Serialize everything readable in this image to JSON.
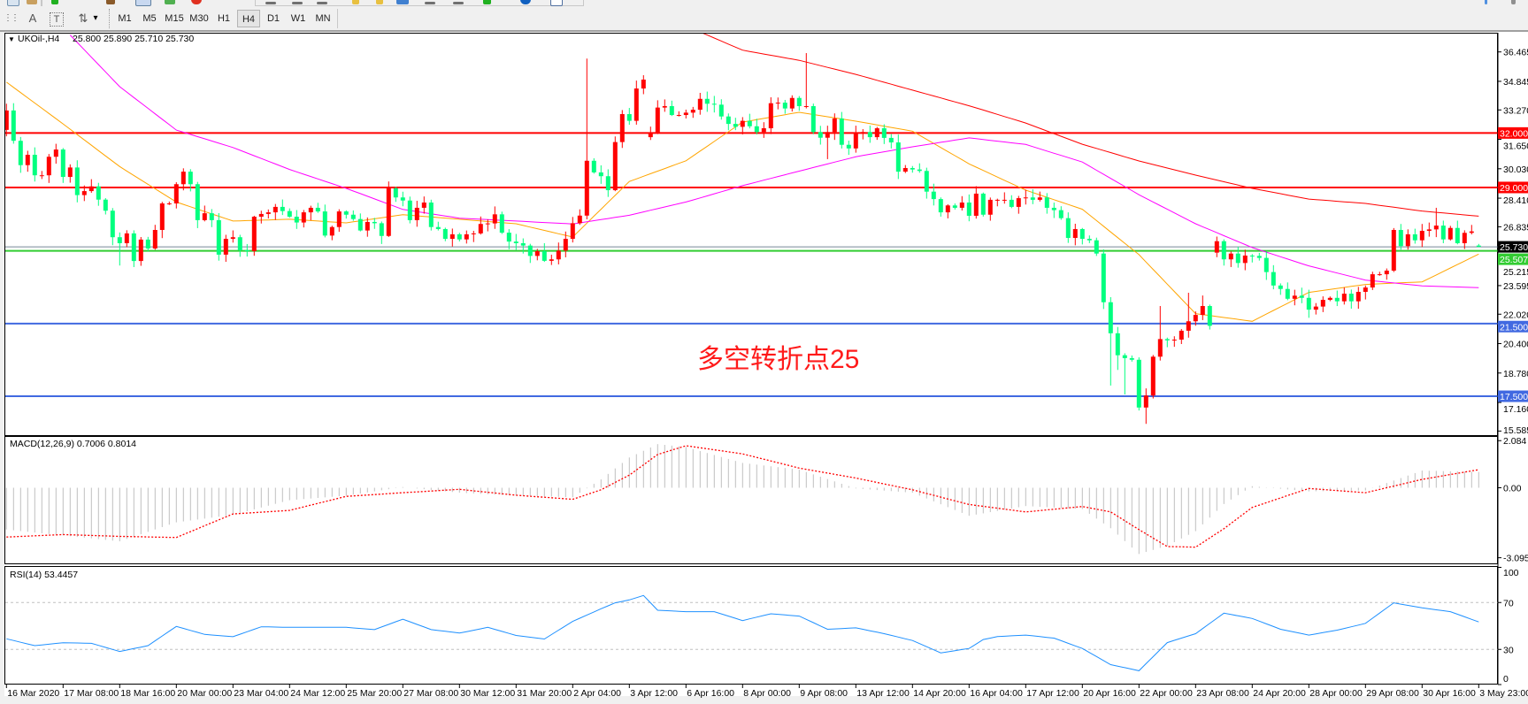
{
  "toolbar": {
    "timeframes": [
      "M1",
      "M5",
      "M15",
      "M30",
      "H1",
      "H4",
      "D1",
      "W1",
      "MN"
    ],
    "active_timeframe": "H4",
    "tools": [
      {
        "name": "grid-icon",
        "glyph": "⋮⋮"
      },
      {
        "name": "text-icon",
        "glyph": "A"
      },
      {
        "name": "text-label-icon",
        "glyph": "T"
      },
      {
        "name": "arrows-icon",
        "glyph": "⇅"
      }
    ],
    "dropdown_glyph": "▾"
  },
  "chart": {
    "symbol": "UKOil-,H4",
    "ohlc_text": "25.800 25.890 25.710 25.730",
    "legend_marker": "▼",
    "annotation": "多空转折点25",
    "colors": {
      "bull": "#ff0000",
      "bear": "#00ff7f",
      "ma_fast": "#ffa500",
      "ma_mid": "#ff00ff",
      "ma_slow": "#ff0000",
      "bid_line": "#778899",
      "annotation": "#ff1a1a"
    },
    "price_ticks": [
      "36.465",
      "34.845",
      "33.270",
      "31.650",
      "30.030",
      "28.410",
      "26.835",
      "25.215",
      "23.595",
      "22.020",
      "20.400",
      "18.780",
      "17.160",
      "15.585"
    ],
    "current_price": {
      "value": 25.73,
      "label": "25.730",
      "bg": "#000000"
    },
    "levels": [
      {
        "price": 32.0,
        "label": "32.000",
        "color": "#ff0000"
      },
      {
        "price": 29.0,
        "label": "29.000",
        "color": "#ff0000"
      },
      {
        "price": 25.507,
        "label": "25.507",
        "color": "#32cd32"
      },
      {
        "price": 21.5,
        "label": "21.500",
        "color": "#4169e1"
      },
      {
        "price": 17.5,
        "label": "17.500",
        "color": "#4169e1"
      }
    ],
    "dates": [
      "16 Mar 2020",
      "17 Mar 08:00",
      "18 Mar 16:00",
      "20 Mar 00:00",
      "23 Mar 04:00",
      "24 Mar 12:00",
      "25 Mar 20:00",
      "27 Mar 08:00",
      "30 Mar 12:00",
      "31 Mar 20:00",
      "2 Apr 04:00",
      "3 Apr 12:00",
      "6 Apr 16:00",
      "8 Apr 00:00",
      "9 Apr 08:00",
      "13 Apr 12:00",
      "14 Apr 20:00",
      "16 Apr 04:00",
      "17 Apr 12:00",
      "20 Apr 16:00",
      "22 Apr 00:00",
      "23 Apr 08:00",
      "24 Apr 20:00",
      "28 Apr 00:00",
      "29 Apr 08:00",
      "30 Apr 16:00",
      "3 May 23:00"
    ]
  },
  "chart_data": {
    "type": "candlestick",
    "timeframe": "H4",
    "close": [
      33.24,
      31.57,
      30.23,
      30.8,
      29.67,
      29.67,
      30.69,
      31.09,
      29.58,
      30.1,
      28.58,
      28.8,
      29.06,
      28.33,
      27.72,
      26.26,
      25.93,
      26.47,
      24.95,
      26.13,
      25.64,
      26.66,
      28.12,
      28.12,
      29.18,
      29.87,
      29.18,
      27.2,
      27.58,
      27.2,
      25.3,
      26.17,
      26.26,
      25.54,
      25.49,
      27.39,
      27.54,
      27.63,
      27.93,
      27.7,
      27.39,
      27.07,
      27.63,
      27.88,
      27.68,
      26.35,
      26.82,
      27.68,
      27.5,
      27.26,
      26.63,
      27.1,
      27.03,
      26.33,
      28.95,
      28.45,
      28.28,
      27.2,
      27.88,
      28.17,
      26.82,
      26.71,
      26.17,
      26.42,
      26.14,
      26.42,
      26.47,
      26.99,
      27.02,
      27.52,
      26.51,
      26.02,
      25.93,
      25.8,
      25.23,
      25.49,
      24.96,
      25.04,
      25.52,
      26.17,
      27.03,
      27.45,
      30.47,
      29.83,
      29.62,
      28.85,
      31.5,
      33.04,
      32.67,
      34.45,
      34.94,
      32.02,
      33.4,
      33.48,
      32.99,
      32.99,
      33.12,
      33.28,
      33.88,
      33.61,
      33.56,
      32.91,
      32.5,
      32.34,
      32.67,
      32.37,
      32.05,
      32.26,
      33.64,
      33.67,
      33.35,
      33.93,
      33.48,
      33.48,
      32.05,
      31.74,
      32.05,
      32.8,
      31.35,
      31.15,
      32.02,
      32.05,
      31.77,
      32.26,
      31.73,
      31.48,
      29.87,
      30.07,
      29.99,
      29.91,
      28.77,
      28.36,
      27.63,
      28.01,
      27.88,
      28.17,
      27.44,
      28.66,
      27.5,
      28.32,
      28.32,
      28.32,
      27.93,
      28.41,
      28.45,
      28.32,
      28.45,
      27.88,
      27.75,
      27.31,
      26.22,
      26.71,
      26.17,
      26.09,
      25.36,
      22.68,
      20.97,
      19.76,
      19.6,
      19.51,
      16.88,
      17.54,
      19.68,
      20.65,
      20.58,
      20.62,
      21.11,
      21.63,
      21.98,
      22.47,
      21.38,
      26.04,
      25.04,
      25.36,
      24.84,
      25.25,
      25.23,
      25.12,
      24.34,
      23.6,
      23.41,
      22.87,
      23.04,
      22.92,
      22.27,
      22.44,
      22.81,
      22.92,
      22.73,
      23.15,
      22.73,
      23.25,
      23.49,
      24.22,
      24.22,
      24.42,
      26.66,
      25.77,
      26.42,
      26.09,
      26.61,
      26.69,
      26.9,
      26.14,
      26.77,
      25.93,
      26.5,
      26.58,
      25.73
    ],
    "open_overrides": {
      "0": 32.17,
      "91": 31.77,
      "171": 25.41,
      "208": 25.8
    },
    "high_overrides": {
      "54": 29.33,
      "82": 36.1,
      "113": 36.4,
      "163": 22.47,
      "167": 23.2,
      "169": 23.05,
      "202": 27.88,
      "208": 25.89
    },
    "low_overrides": {
      "16": 24.7,
      "116": 30.56,
      "156": 18.09,
      "157": 18.95,
      "158": 17.6,
      "161": 15.98,
      "208": 25.71
    },
    "price_range": [
      15.36,
      37.52
    ],
    "moving_averages": {
      "bars": [
        0,
        8,
        16,
        24,
        32,
        40,
        48,
        56,
        64,
        72,
        80,
        88,
        96,
        104,
        112,
        120,
        128,
        136,
        144,
        152,
        160,
        168,
        176,
        184,
        192,
        200,
        208
      ],
      "fast": [
        34.8,
        32.5,
        30.15,
        28.2,
        27.15,
        27.25,
        27.05,
        27.5,
        27.25,
        27.0,
        26.27,
        29.33,
        30.47,
        32.6,
        33.14,
        32.65,
        32.1,
        30.3,
        28.85,
        27.8,
        25.3,
        22.05,
        21.63,
        23.22,
        23.66,
        23.8,
        25.33
      ],
      "mid": [
        null,
        37.8,
        34.55,
        32.16,
        31.2,
        29.99,
        28.95,
        27.79,
        27.31,
        27.15,
        26.99,
        27.47,
        28.2,
        29.1,
        29.9,
        30.69,
        31.24,
        31.73,
        31.37,
        30.4,
        28.6,
        27.0,
        25.69,
        24.68,
        23.9,
        23.58,
        23.48
      ],
      "slow": [
        null,
        null,
        null,
        null,
        null,
        null,
        null,
        null,
        null,
        null,
        null,
        null,
        37.9,
        36.56,
        36.0,
        35.23,
        34.36,
        33.5,
        32.55,
        31.38,
        30.46,
        29.68,
        28.95,
        28.36,
        28.12,
        27.7,
        27.42
      ]
    },
    "macd": {
      "label": "MACD(12,26,9) 0.7006 0.8014",
      "ticks": [
        "2.084",
        "0.00",
        "-3.0957"
      ],
      "range": [
        -3.0957,
        2.084
      ],
      "bars": [
        0,
        8,
        16,
        24,
        32,
        40,
        48,
        56,
        64,
        72,
        80,
        84,
        88,
        92,
        96,
        104,
        112,
        120,
        128,
        136,
        144,
        152,
        156,
        160,
        164,
        168,
        172,
        176,
        184,
        192,
        200,
        208
      ],
      "main": [
        -1.85,
        -2.11,
        -2.37,
        -1.53,
        -1.2,
        -0.55,
        -0.35,
        0.03,
        -0.22,
        -0.35,
        -0.42,
        0.37,
        1.34,
        1.93,
        1.8,
        1.1,
        0.8,
        -0.03,
        -0.22,
        -1.24,
        -0.81,
        -0.94,
        -1.79,
        -2.93,
        -2.57,
        -1.92,
        -0.72,
        0.07,
        -0.16,
        -0.12,
        0.76,
        0.7
      ],
      "signal": [
        -2.18,
        -2.07,
        -2.15,
        -2.2,
        -1.16,
        -1.0,
        -0.38,
        -0.22,
        -0.07,
        -0.33,
        -0.51,
        -0.09,
        0.56,
        1.47,
        1.86,
        1.5,
        0.87,
        0.43,
        -0.09,
        -0.74,
        -1.07,
        -0.83,
        -1.07,
        -1.85,
        -2.6,
        -2.63,
        -1.81,
        -0.87,
        -0.03,
        -0.22,
        0.37,
        0.8
      ],
      "colors": {
        "histogram": "#c0c0c0",
        "signal": "#ff0000"
      }
    },
    "rsi": {
      "label": "RSI(14) 53.4457",
      "ticks": [
        "100",
        "70",
        "30",
        "0"
      ],
      "levels": [
        70,
        30
      ],
      "range": [
        0,
        100
      ],
      "bars": [
        0,
        4,
        8,
        12,
        16,
        20,
        24,
        28,
        32,
        36,
        40,
        44,
        48,
        52,
        56,
        60,
        64,
        68,
        72,
        76,
        80,
        84,
        86,
        88,
        90,
        92,
        96,
        100,
        104,
        108,
        112,
        116,
        120,
        124,
        128,
        132,
        136,
        138,
        140,
        144,
        148,
        152,
        156,
        160,
        164,
        168,
        172,
        176,
        180,
        184,
        188,
        192,
        196,
        200,
        204,
        208
      ],
      "values": [
        39.0,
        33.2,
        35.7,
        35.2,
        28.2,
        33.2,
        49.6,
        42.8,
        40.8,
        49.3,
        48.8,
        48.8,
        48.8,
        46.9,
        55.8,
        46.9,
        43.9,
        48.8,
        41.9,
        38.9,
        53.9,
        64.7,
        69.7,
        72.2,
        76.0,
        63.4,
        62.2,
        62.2,
        54.6,
        60.4,
        58.4,
        47.2,
        48.4,
        43.4,
        37.6,
        27.0,
        30.8,
        38.4,
        40.9,
        42.2,
        39.6,
        30.8,
        17.0,
        11.8,
        35.8,
        43.4,
        60.9,
        56.4,
        47.2,
        42.2,
        46.4,
        52.2,
        69.7,
        65.4,
        62.2,
        53.4
      ],
      "color": "#1e90ff"
    }
  }
}
